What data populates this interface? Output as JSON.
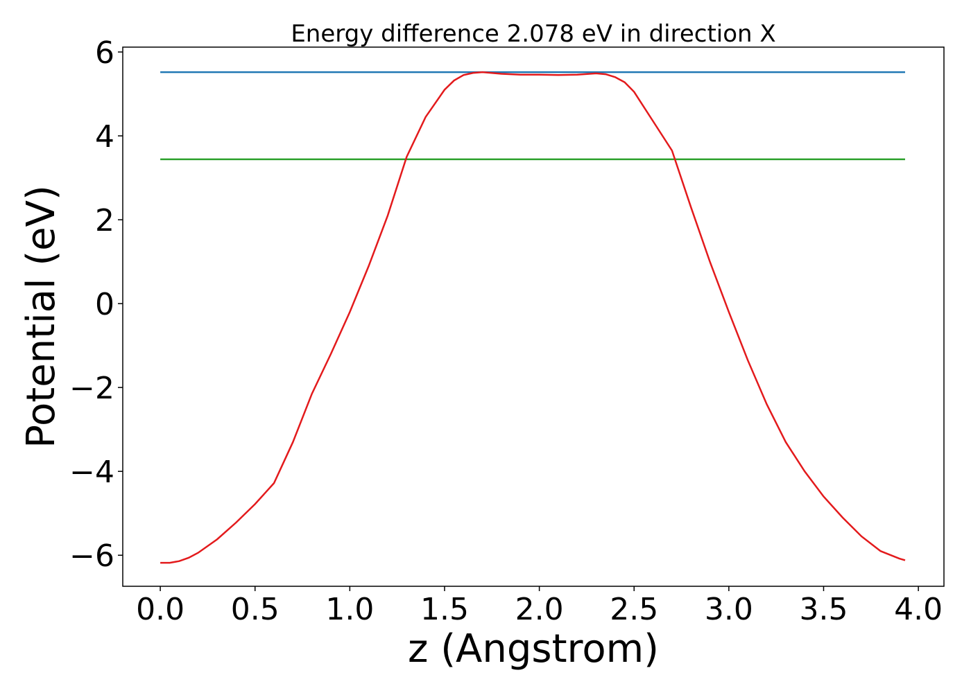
{
  "chart_data": {
    "type": "line",
    "title": "Energy difference 2.078 eV in direction X",
    "xlabel": "z (Angstrom)",
    "ylabel": "Potential (eV)",
    "xlim": [
      -0.198,
      4.135
    ],
    "ylim": [
      -6.74,
      6.116
    ],
    "xticks": [
      {
        "value": 0,
        "label": "0.0"
      },
      0.5,
      {
        "value": 1,
        "label": "1.0"
      },
      1.5,
      {
        "value": 2,
        "label": "2.0"
      },
      2.5,
      {
        "value": 3,
        "label": "3.0"
      },
      3.5,
      {
        "value": 4,
        "label": "4.0"
      }
    ],
    "yticks": [
      {
        "value": -6,
        "label": "−6"
      },
      {
        "value": -4,
        "label": "−4"
      },
      {
        "value": -2,
        "label": "−2"
      },
      0,
      2,
      4,
      6
    ],
    "series": [
      {
        "color": "#1f77b4",
        "x": [
          0,
          3.93
        ],
        "values": [
          5.52,
          5.52
        ]
      },
      {
        "color": "#2ca02c",
        "x": [
          0,
          3.93
        ],
        "values": [
          3.442,
          3.442
        ]
      },
      {
        "color": "#e31a1c",
        "x": [
          0,
          0.05,
          0.1,
          0.15,
          0.2,
          0.3,
          0.4,
          0.5,
          0.6,
          0.7,
          0.8,
          0.9,
          1.0,
          1.1,
          1.2,
          1.3,
          1.4,
          1.5,
          1.55,
          1.6,
          1.65,
          1.7,
          1.8,
          1.9,
          2.0,
          2.1,
          2.2,
          2.3,
          2.35,
          2.4,
          2.45,
          2.5,
          2.6,
          2.7,
          2.8,
          2.9,
          3.0,
          3.1,
          3.2,
          3.3,
          3.4,
          3.5,
          3.6,
          3.7,
          3.8,
          3.9,
          3.93
        ],
        "values": [
          -6.18,
          -6.18,
          -6.14,
          -6.06,
          -5.94,
          -5.62,
          -5.22,
          -4.78,
          -4.28,
          -3.3,
          -2.15,
          -1.2,
          -0.2,
          0.9,
          2.1,
          3.5,
          4.45,
          5.1,
          5.32,
          5.45,
          5.5,
          5.52,
          5.48,
          5.46,
          5.46,
          5.45,
          5.46,
          5.49,
          5.47,
          5.4,
          5.28,
          5.05,
          4.35,
          3.65,
          2.3,
          1.0,
          -0.2,
          -1.35,
          -2.4,
          -3.3,
          -4.0,
          -4.6,
          -5.1,
          -5.55,
          -5.9,
          -6.08,
          -6.12
        ]
      }
    ]
  }
}
